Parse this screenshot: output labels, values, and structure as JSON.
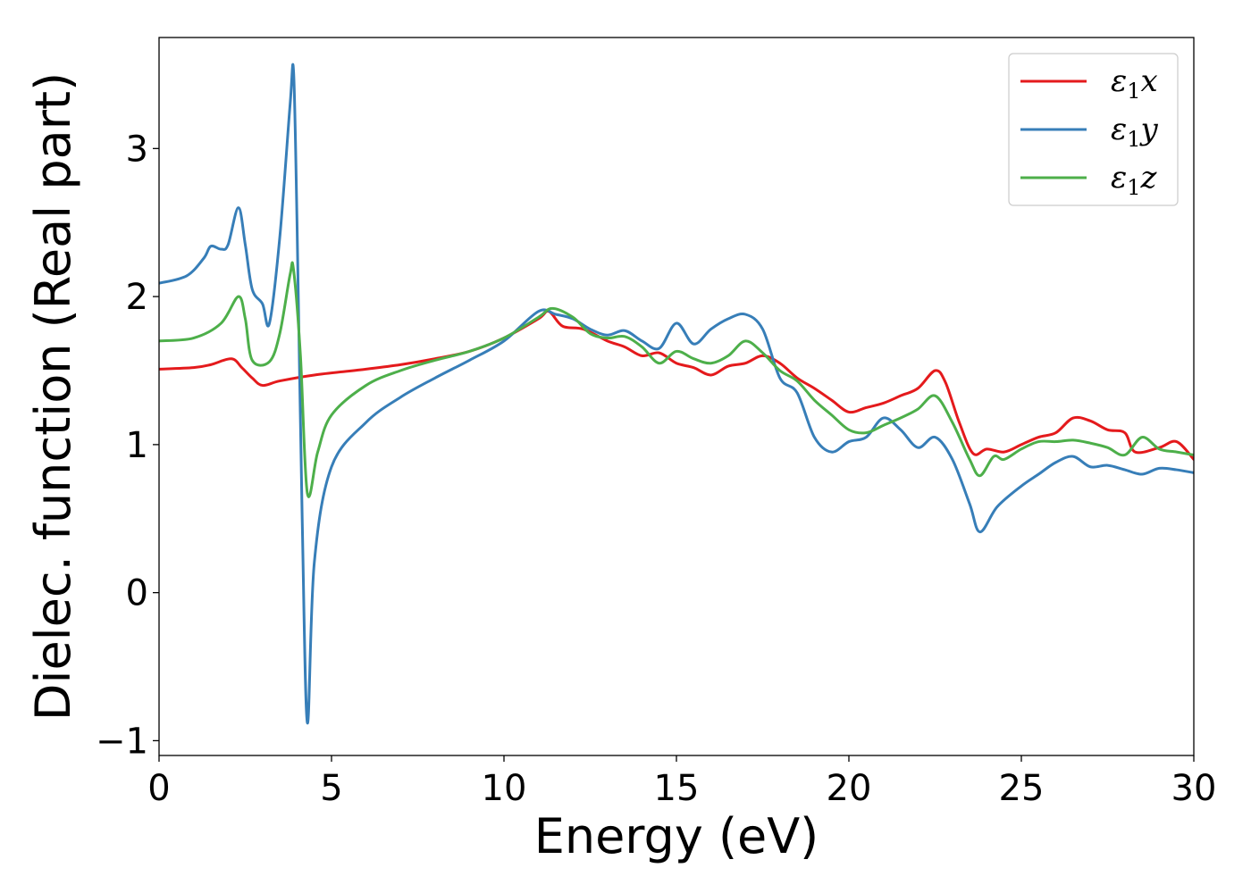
{
  "chart_data": {
    "type": "line",
    "title": "",
    "xlabel": "Energy (eV)",
    "ylabel": "Dielec. function (Real part)",
    "xlim": [
      0,
      30
    ],
    "ylim": [
      -1.1,
      3.75
    ],
    "xticks": [
      0,
      5,
      10,
      15,
      20,
      25,
      30
    ],
    "xtick_labels": [
      "0",
      "5",
      "10",
      "15",
      "20",
      "25",
      "30"
    ],
    "yticks": [
      -1,
      0,
      1,
      2,
      3
    ],
    "ytick_labels": [
      "−1",
      "0",
      "1",
      "2",
      "3"
    ],
    "grid": false,
    "legend_position": "top-right",
    "series": [
      {
        "name": "ε₁x",
        "legend_main": "ε",
        "legend_sub": "1",
        "legend_tail": "x",
        "color": "#e41a1c",
        "points": [
          [
            0,
            1.51
          ],
          [
            1,
            1.52
          ],
          [
            1.5,
            1.54
          ],
          [
            2.1,
            1.58
          ],
          [
            2.4,
            1.52
          ],
          [
            2.7,
            1.45
          ],
          [
            3.0,
            1.4
          ],
          [
            3.5,
            1.43
          ],
          [
            4.5,
            1.47
          ],
          [
            6,
            1.51
          ],
          [
            7,
            1.54
          ],
          [
            8,
            1.58
          ],
          [
            9,
            1.63
          ],
          [
            10,
            1.72
          ],
          [
            11,
            1.85
          ],
          [
            11.3,
            1.9
          ],
          [
            11.7,
            1.8
          ],
          [
            12.3,
            1.78
          ],
          [
            13,
            1.7
          ],
          [
            13.5,
            1.66
          ],
          [
            14,
            1.6
          ],
          [
            14.5,
            1.62
          ],
          [
            15,
            1.55
          ],
          [
            15.5,
            1.52
          ],
          [
            16,
            1.47
          ],
          [
            16.5,
            1.53
          ],
          [
            17,
            1.55
          ],
          [
            17.5,
            1.6
          ],
          [
            18,
            1.55
          ],
          [
            18.5,
            1.45
          ],
          [
            19,
            1.38
          ],
          [
            19.5,
            1.3
          ],
          [
            20,
            1.22
          ],
          [
            20.5,
            1.25
          ],
          [
            21,
            1.28
          ],
          [
            21.5,
            1.33
          ],
          [
            22,
            1.38
          ],
          [
            22.5,
            1.5
          ],
          [
            22.8,
            1.42
          ],
          [
            23.2,
            1.15
          ],
          [
            23.6,
            0.94
          ],
          [
            24,
            0.97
          ],
          [
            24.5,
            0.95
          ],
          [
            25,
            1.0
          ],
          [
            25.5,
            1.05
          ],
          [
            26,
            1.08
          ],
          [
            26.5,
            1.18
          ],
          [
            27,
            1.16
          ],
          [
            27.5,
            1.1
          ],
          [
            28,
            1.08
          ],
          [
            28.3,
            0.95
          ],
          [
            29,
            0.98
          ],
          [
            29.5,
            1.02
          ],
          [
            30,
            0.9
          ]
        ]
      },
      {
        "name": "ε₁y",
        "legend_main": "ε",
        "legend_sub": "1",
        "legend_tail": "y",
        "color": "#377eb8",
        "points": [
          [
            0,
            2.09
          ],
          [
            0.8,
            2.14
          ],
          [
            1.3,
            2.26
          ],
          [
            1.5,
            2.34
          ],
          [
            1.8,
            2.32
          ],
          [
            2.0,
            2.35
          ],
          [
            2.3,
            2.6
          ],
          [
            2.5,
            2.35
          ],
          [
            2.7,
            2.05
          ],
          [
            3.0,
            1.95
          ],
          [
            3.2,
            1.82
          ],
          [
            3.5,
            2.4
          ],
          [
            3.8,
            3.3
          ],
          [
            3.9,
            3.52
          ],
          [
            4.0,
            2.5
          ],
          [
            4.15,
            0.5
          ],
          [
            4.3,
            -0.88
          ],
          [
            4.5,
            0.2
          ],
          [
            5,
            0.85
          ],
          [
            6,
            1.15
          ],
          [
            7,
            1.32
          ],
          [
            8,
            1.45
          ],
          [
            9,
            1.57
          ],
          [
            10,
            1.7
          ],
          [
            11,
            1.9
          ],
          [
            11.5,
            1.88
          ],
          [
            12,
            1.85
          ],
          [
            12.5,
            1.78
          ],
          [
            13,
            1.74
          ],
          [
            13.5,
            1.77
          ],
          [
            14,
            1.7
          ],
          [
            14.5,
            1.65
          ],
          [
            15,
            1.82
          ],
          [
            15.5,
            1.68
          ],
          [
            16,
            1.78
          ],
          [
            16.5,
            1.85
          ],
          [
            17,
            1.88
          ],
          [
            17.5,
            1.78
          ],
          [
            18,
            1.45
          ],
          [
            18.5,
            1.35
          ],
          [
            19,
            1.05
          ],
          [
            19.5,
            0.95
          ],
          [
            20,
            1.02
          ],
          [
            20.5,
            1.05
          ],
          [
            21,
            1.18
          ],
          [
            21.5,
            1.1
          ],
          [
            22,
            0.98
          ],
          [
            22.5,
            1.05
          ],
          [
            23,
            0.9
          ],
          [
            23.5,
            0.6
          ],
          [
            23.8,
            0.41
          ],
          [
            24.3,
            0.58
          ],
          [
            25,
            0.72
          ],
          [
            25.5,
            0.8
          ],
          [
            26,
            0.88
          ],
          [
            26.5,
            0.92
          ],
          [
            27,
            0.85
          ],
          [
            27.5,
            0.86
          ],
          [
            28,
            0.83
          ],
          [
            28.5,
            0.8
          ],
          [
            29,
            0.84
          ],
          [
            29.5,
            0.83
          ],
          [
            30,
            0.81
          ]
        ]
      },
      {
        "name": "ε₁z",
        "legend_main": "ε",
        "legend_sub": "1",
        "legend_tail": "z",
        "color": "#4daf4a",
        "points": [
          [
            0,
            1.7
          ],
          [
            1,
            1.72
          ],
          [
            1.8,
            1.82
          ],
          [
            2.3,
            2.0
          ],
          [
            2.5,
            1.85
          ],
          [
            2.7,
            1.57
          ],
          [
            3.2,
            1.56
          ],
          [
            3.5,
            1.75
          ],
          [
            3.8,
            2.15
          ],
          [
            3.9,
            2.18
          ],
          [
            4.1,
            1.6
          ],
          [
            4.3,
            0.67
          ],
          [
            4.6,
            0.95
          ],
          [
            5,
            1.2
          ],
          [
            6,
            1.4
          ],
          [
            7,
            1.5
          ],
          [
            8,
            1.57
          ],
          [
            9,
            1.63
          ],
          [
            10,
            1.72
          ],
          [
            11,
            1.86
          ],
          [
            11.4,
            1.92
          ],
          [
            12,
            1.86
          ],
          [
            12.5,
            1.75
          ],
          [
            13,
            1.72
          ],
          [
            13.5,
            1.73
          ],
          [
            14,
            1.66
          ],
          [
            14.5,
            1.55
          ],
          [
            15,
            1.63
          ],
          [
            15.5,
            1.58
          ],
          [
            16,
            1.55
          ],
          [
            16.5,
            1.6
          ],
          [
            17,
            1.7
          ],
          [
            17.5,
            1.62
          ],
          [
            18,
            1.5
          ],
          [
            18.5,
            1.43
          ],
          [
            19,
            1.3
          ],
          [
            19.5,
            1.2
          ],
          [
            20,
            1.1
          ],
          [
            20.5,
            1.08
          ],
          [
            21,
            1.13
          ],
          [
            21.5,
            1.18
          ],
          [
            22,
            1.24
          ],
          [
            22.5,
            1.33
          ],
          [
            23,
            1.15
          ],
          [
            23.5,
            0.9
          ],
          [
            23.8,
            0.79
          ],
          [
            24.2,
            0.92
          ],
          [
            24.5,
            0.9
          ],
          [
            25,
            0.97
          ],
          [
            25.5,
            1.02
          ],
          [
            26,
            1.02
          ],
          [
            26.5,
            1.03
          ],
          [
            27,
            1.01
          ],
          [
            27.5,
            0.98
          ],
          [
            28,
            0.93
          ],
          [
            28.5,
            1.05
          ],
          [
            29,
            0.97
          ],
          [
            29.5,
            0.95
          ],
          [
            30,
            0.93
          ]
        ]
      }
    ]
  }
}
